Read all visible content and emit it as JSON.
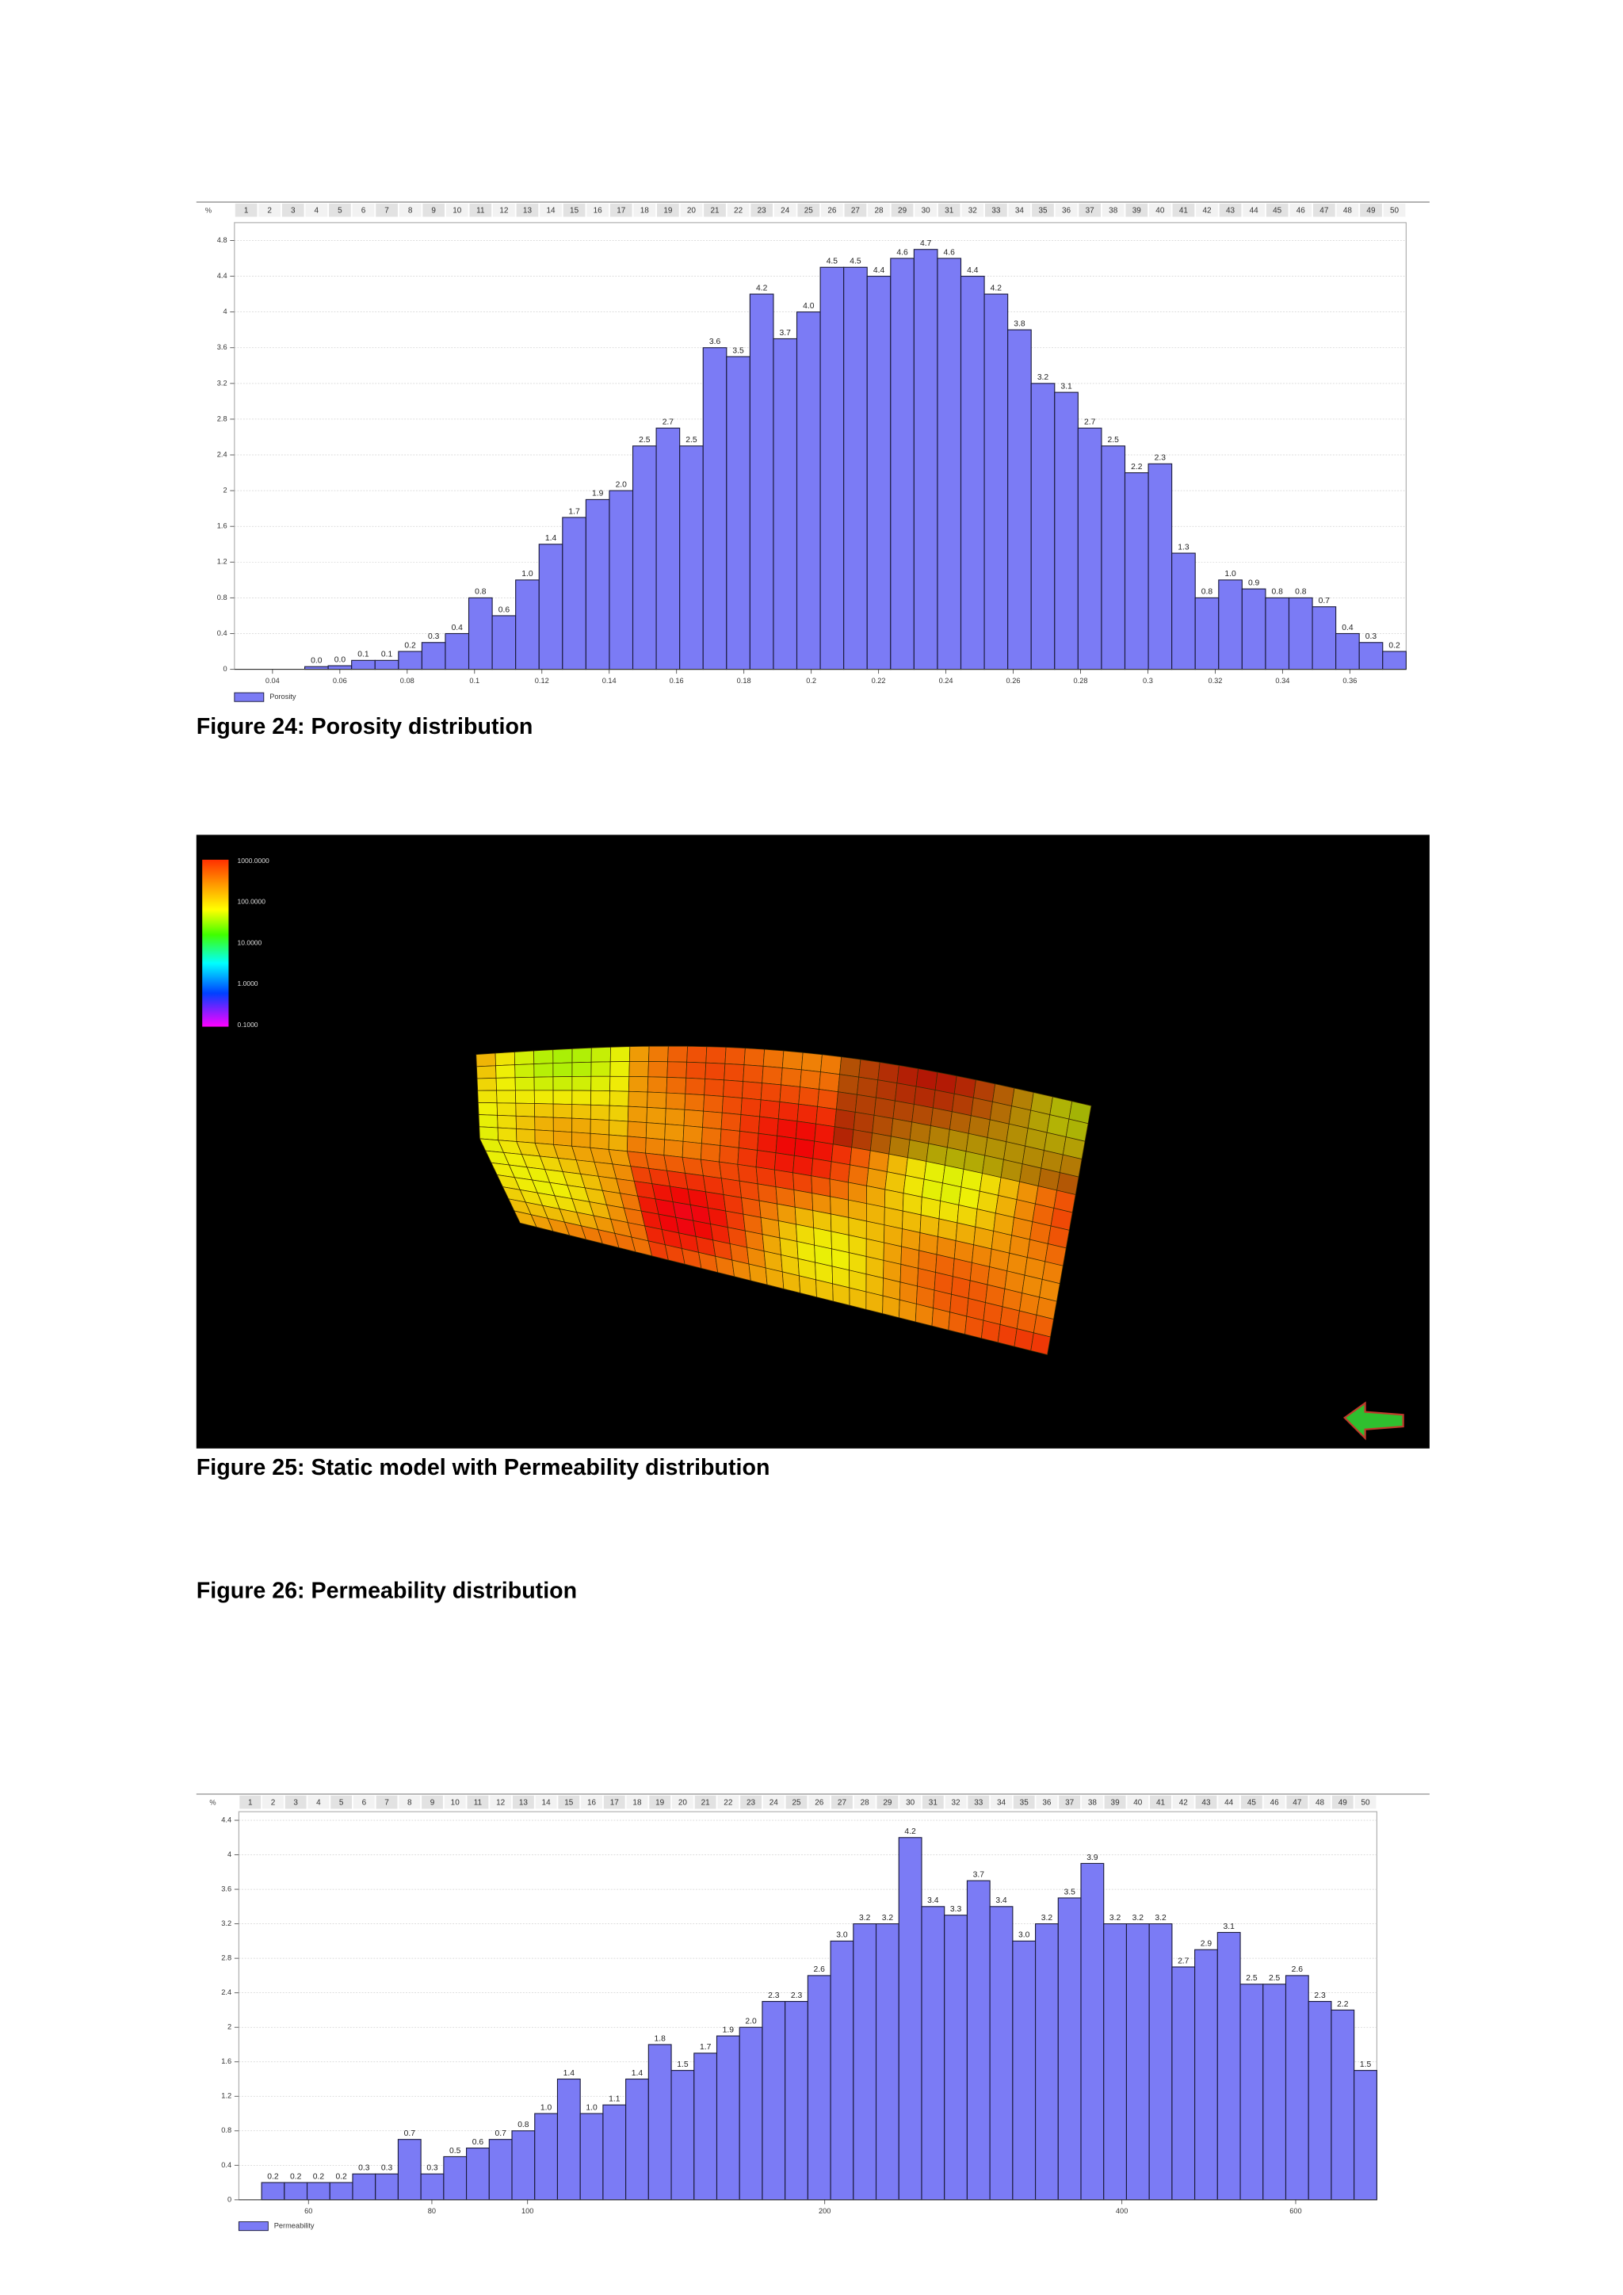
{
  "chart_data": [
    {
      "type": "bar",
      "y_label": "%",
      "grid": true,
      "x_scale": "linear",
      "categories": [
        1,
        2,
        3,
        4,
        5,
        6,
        7,
        8,
        9,
        10,
        11,
        12,
        13,
        14,
        15,
        16,
        17,
        18,
        19,
        20,
        21,
        22,
        23,
        24,
        25,
        26,
        27,
        28,
        29,
        30,
        31,
        32,
        33,
        34,
        35,
        36,
        37,
        38,
        39,
        40,
        41,
        42,
        43,
        44,
        45,
        46,
        47,
        48,
        49,
        50
      ],
      "series": [
        {
          "name": "Porosity",
          "color": "#7b7bf5",
          "values": [
            null,
            null,
            null,
            0.03,
            0.04,
            0.1,
            0.1,
            0.2,
            0.3,
            0.4,
            0.8,
            0.6,
            1.0,
            1.4,
            1.7,
            1.9,
            2.0,
            2.5,
            2.7,
            2.5,
            3.6,
            3.5,
            4.2,
            3.7,
            4.0,
            4.5,
            4.5,
            4.4,
            4.6,
            4.7,
            4.6,
            4.4,
            4.2,
            3.8,
            3.2,
            3.1,
            2.7,
            2.5,
            2.2,
            2.3,
            1.3,
            0.8,
            1.0,
            0.9,
            0.8,
            0.8,
            0.7,
            0.4,
            0.3,
            0.2
          ],
          "value_labels": [
            null,
            null,
            null,
            "0.0",
            "0.0",
            "0.1",
            "0.1",
            "0.2",
            "0.3",
            "0.4",
            "0.8",
            "0.6",
            "1.0",
            "1.4",
            "1.7",
            "1.9",
            "2.0",
            "2.5",
            "2.7",
            "2.5",
            "3.6",
            "3.5",
            "4.2",
            "3.7",
            "4.0",
            "4.5",
            "4.5",
            "4.4",
            "4.6",
            "4.7",
            "4.6",
            "4.4",
            "4.2",
            "3.8",
            "3.2",
            "3.1",
            "2.7",
            "2.5",
            "2.2",
            "2.3",
            "1.3",
            "0.8",
            "1.0",
            "0.9",
            "0.8",
            "0.8",
            "0.7",
            "0.4",
            "0.3",
            "0.2"
          ]
        }
      ],
      "xlim": [
        0.0287,
        0.3767
      ],
      "xticks": [
        0.04,
        0.06,
        0.08,
        0.1,
        0.12,
        0.14,
        0.16,
        0.18,
        0.2,
        0.22,
        0.24,
        0.26,
        0.28,
        0.3,
        0.32,
        0.34,
        0.36
      ],
      "ylim": [
        0,
        5
      ],
      "yticks": [
        0,
        0.4,
        0.8,
        1.2,
        1.6,
        2,
        2.4,
        2.8,
        3.2,
        3.6,
        4,
        4.4,
        4.8
      ]
    },
    {
      "type": "bar",
      "y_label": "%",
      "grid": true,
      "x_scale": "log",
      "categories": [
        1,
        2,
        3,
        4,
        5,
        6,
        7,
        8,
        9,
        10,
        11,
        12,
        13,
        14,
        15,
        16,
        17,
        18,
        19,
        20,
        21,
        22,
        23,
        24,
        25,
        26,
        27,
        28,
        29,
        30,
        31,
        32,
        33,
        34,
        35,
        36,
        37,
        38,
        39,
        40,
        41,
        42,
        43,
        44,
        45,
        46,
        47,
        48,
        49,
        50
      ],
      "series": [
        {
          "name": "Permeability",
          "color": "#7b7bf5",
          "values": [
            null,
            0.2,
            0.2,
            0.2,
            0.2,
            0.3,
            0.3,
            0.7,
            0.3,
            0.5,
            0.6,
            0.7,
            0.8,
            1.0,
            1.4,
            1.0,
            1.1,
            1.4,
            1.8,
            1.5,
            1.7,
            1.9,
            2.0,
            2.3,
            2.3,
            2.6,
            3.0,
            3.2,
            3.2,
            4.2,
            3.4,
            3.3,
            3.7,
            3.4,
            3.0,
            3.2,
            3.5,
            3.9,
            3.2,
            3.2,
            3.2,
            2.7,
            2.9,
            3.1,
            2.5,
            2.5,
            2.6,
            2.3,
            2.2,
            1.5
          ],
          "value_labels": [
            null,
            "0.2",
            "0.2",
            "0.2",
            "0.2",
            "0.3",
            "0.3",
            "0.7",
            "0.3",
            "0.5",
            "0.6",
            "0.7",
            "0.8",
            "1.0",
            "1.4",
            "1.0",
            "1.1",
            "1.4",
            "1.8",
            "1.5",
            "1.7",
            "1.9",
            "2.0",
            "2.3",
            "2.3",
            "2.6",
            "3.0",
            "3.2",
            "3.2",
            "4.2",
            "3.4",
            "3.3",
            "3.7",
            "3.4",
            "3.0",
            "3.2",
            "3.5",
            "3.9",
            "3.2",
            "3.2",
            "3.2",
            "2.7",
            "2.9",
            "3.1",
            "2.5",
            "2.5",
            "2.6",
            "2.3",
            "2.2",
            "1.5"
          ]
        }
      ],
      "xlim": [
        51,
        725
      ],
      "xticks": [
        60,
        80,
        100,
        200,
        400,
        600
      ],
      "ylim": [
        0,
        4.5
      ],
      "yticks": [
        0,
        0.4,
        0.8,
        1.2,
        1.6,
        2,
        2.4,
        2.8,
        3.2,
        3.6,
        4,
        4.4
      ]
    }
  ],
  "captions": [
    "Figure 24: Porosity distribution",
    "Figure 25: Static model with Permeability distribution",
    "Figure 26: Permeability distribution"
  ],
  "colorbar": {
    "labels": [
      "1000.0000",
      "100.0000",
      "10.0000",
      "1.0000",
      "0.1000"
    ]
  }
}
